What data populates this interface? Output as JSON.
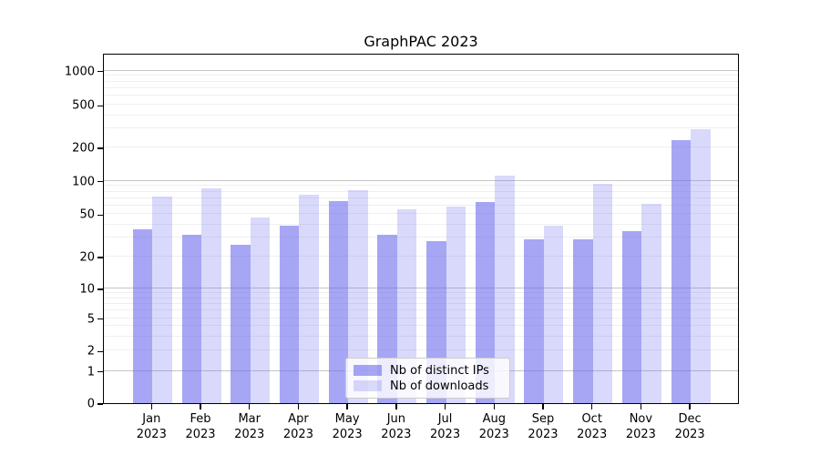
{
  "chart_data": {
    "type": "bar",
    "title": "GraphPAC 2023",
    "categories": [
      {
        "month": "Jan",
        "year": "2023"
      },
      {
        "month": "Feb",
        "year": "2023"
      },
      {
        "month": "Mar",
        "year": "2023"
      },
      {
        "month": "Apr",
        "year": "2023"
      },
      {
        "month": "May",
        "year": "2023"
      },
      {
        "month": "Jun",
        "year": "2023"
      },
      {
        "month": "Jul",
        "year": "2023"
      },
      {
        "month": "Aug",
        "year": "2023"
      },
      {
        "month": "Sep",
        "year": "2023"
      },
      {
        "month": "Oct",
        "year": "2023"
      },
      {
        "month": "Nov",
        "year": "2023"
      },
      {
        "month": "Dec",
        "year": "2023"
      }
    ],
    "series": [
      {
        "name": "Nb of distinct IPs",
        "values": [
          36,
          32,
          26,
          39,
          66,
          32,
          28,
          64,
          29,
          29,
          35,
          235
        ]
      },
      {
        "name": "Nb of downloads",
        "values": [
          72,
          86,
          47,
          75,
          82,
          55,
          59,
          112,
          39,
          94,
          62,
          296
        ]
      }
    ],
    "yscale": "symlog",
    "yticks": [
      0,
      1,
      2,
      5,
      10,
      20,
      50,
      100,
      200,
      500,
      1000
    ],
    "minor_gridlines": [
      2,
      3,
      4,
      5,
      6,
      7,
      8,
      9,
      20,
      30,
      40,
      50,
      60,
      70,
      80,
      90,
      200,
      300,
      400,
      500,
      600,
      700,
      800,
      900
    ],
    "major_gridlines": [
      1,
      10,
      100,
      1000
    ],
    "xlabel": "",
    "ylabel": "",
    "ylim": [
      0,
      1400
    ],
    "grid": "both",
    "legend_position": "lower center",
    "colors": {
      "series": [
        "rgba(102,102,238,0.58)",
        "rgba(102,102,238,0.25)"
      ],
      "grid_major": "#c6c6c6",
      "grid_minor": "#efefef"
    }
  }
}
